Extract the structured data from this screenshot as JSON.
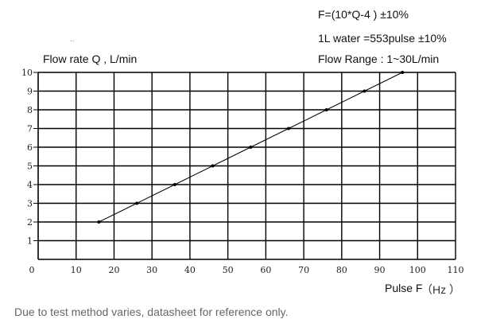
{
  "chart_data": {
    "type": "line",
    "ylabel": "Flow rate  Q  , L/min",
    "xlabel": "Pulse F",
    "xunit": "（Hz ）",
    "xlim": [
      0,
      110
    ],
    "ylim": [
      0,
      10
    ],
    "x_ticks": [
      "0",
      "10",
      "20",
      "30",
      "40",
      "50",
      "60",
      "70",
      "80",
      "90",
      "100",
      "110"
    ],
    "y_ticks": [
      "1",
      "2",
      "3",
      "4",
      "5",
      "6",
      "7",
      "8",
      "9",
      "10"
    ],
    "grid": true,
    "series": [
      {
        "color": "#000000",
        "points": [
          {
            "x": 16,
            "y": 2
          },
          {
            "x": 26,
            "y": 3
          },
          {
            "x": 36,
            "y": 4
          },
          {
            "x": 46,
            "y": 5
          },
          {
            "x": 56,
            "y": 6
          },
          {
            "x": 66,
            "y": 7
          },
          {
            "x": 76,
            "y": 8
          },
          {
            "x": 86,
            "y": 9
          },
          {
            "x": 96,
            "y": 10
          }
        ]
      }
    ]
  },
  "annotations": {
    "formula": "F=(10*Q-4 ) ±10%",
    "calibration": "1L water =553pulse ±10%",
    "range": "Flow Range : 1~30L/min",
    "dot": "..",
    "note": "Due to test method varies, datasheet for reference only."
  }
}
